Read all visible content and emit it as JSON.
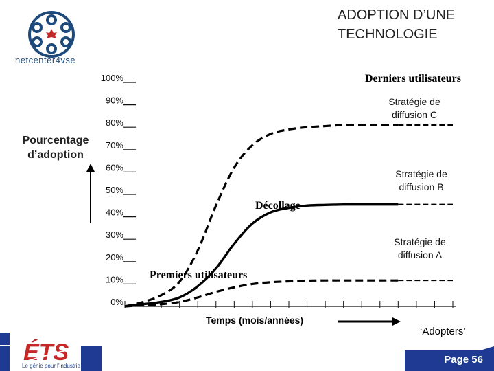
{
  "title": "ADOPTION D’UNE TECHNOLOGIE",
  "logo_text": "netcenter4vse",
  "ets_logo_text": "ÉTS",
  "ets_tagline": "Le génie pour l’industrie",
  "page_label": "Page 56",
  "annotations": {
    "derniers": "Derniers utilisateurs",
    "strat_c": "Stratégie de diffusion C",
    "strat_b": "Stratégie de diffusion B",
    "strat_a": "Stratégie de diffusion A",
    "decollage": "Décollage",
    "premiers": "Premiers utilisateurs",
    "adopters": "‘Adopters’"
  },
  "colors": {
    "footer_blue": "#1f3a93",
    "ets_red": "#c62828",
    "logo_blue": "#1d4a7a"
  },
  "chart_data": {
    "type": "line",
    "ylabel": "Pourcentage d’adoption",
    "xlabel": "Temps (mois/années)",
    "y_ticks": [
      "0%",
      "10%",
      "20%",
      "30%",
      "40%",
      "50%",
      "60%",
      "70%",
      "80%",
      "90%",
      "100%"
    ],
    "x_ticks_count": 18,
    "ylim": [
      0,
      100
    ],
    "xlim": [
      0,
      18
    ],
    "series": [
      {
        "name": "Stratégie de diffusion C",
        "style": "dashed",
        "x": [
          0,
          1,
          2,
          3,
          4,
          5,
          6,
          7,
          8,
          9,
          10,
          11,
          12,
          13,
          14,
          15
        ],
        "y": [
          0,
          2,
          5,
          11,
          25,
          45,
          62,
          72,
          77,
          79,
          80,
          80.5,
          81,
          81,
          81,
          81
        ]
      },
      {
        "name": "Stratégie de diffusion B",
        "style": "solid",
        "x": [
          0,
          1,
          2,
          3,
          4,
          5,
          6,
          7,
          8,
          9,
          10,
          11,
          12,
          13,
          14,
          15
        ],
        "y": [
          0,
          1,
          2,
          4,
          9,
          17,
          28,
          37,
          42,
          44,
          45,
          45.3,
          45.5,
          45.5,
          45.5,
          45.5
        ]
      },
      {
        "name": "Stratégie de diffusion A",
        "style": "dashed",
        "x": [
          0,
          1,
          2,
          3,
          4,
          5,
          6,
          7,
          8,
          9,
          10,
          11,
          12,
          13,
          14,
          15
        ],
        "y": [
          0,
          0.5,
          1,
          2,
          4,
          6.5,
          8.5,
          10,
          10.8,
          11.2,
          11.5,
          11.6,
          11.6,
          11.6,
          11.6,
          11.6
        ]
      }
    ]
  }
}
